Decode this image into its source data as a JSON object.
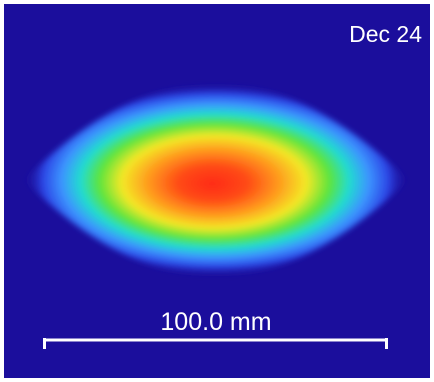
{
  "annotations": {
    "date": "Dec 24",
    "scale_bar": "100.0 mm"
  }
}
